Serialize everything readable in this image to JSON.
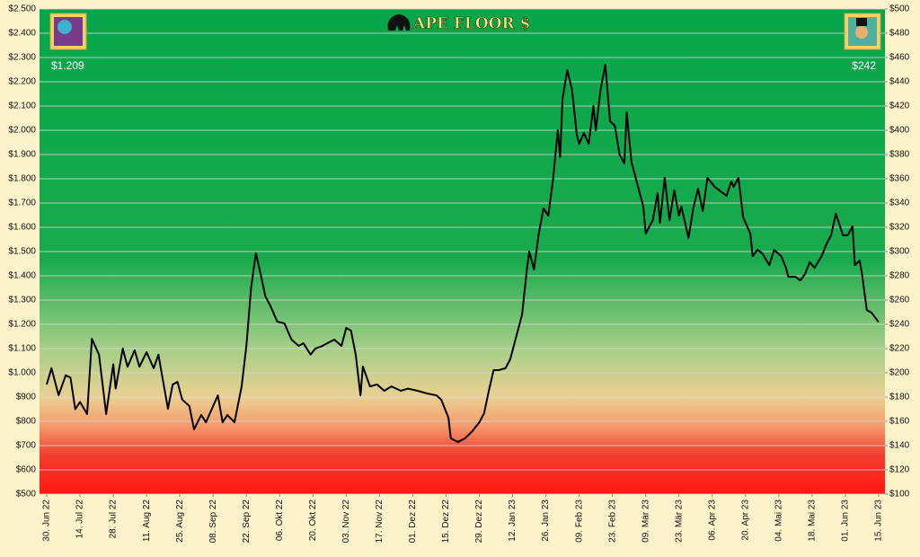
{
  "chart_data": {
    "type": "line",
    "title": "APE FLOOR $",
    "annotations": [
      "$1.209",
      "$242"
    ],
    "color": "#000000",
    "grid": true,
    "x": [
      "2022-06-30",
      "2022-07-02",
      "2022-07-05",
      "2022-07-08",
      "2022-07-10",
      "2022-07-12",
      "2022-07-14",
      "2022-07-17",
      "2022-07-19",
      "2022-07-22",
      "2022-07-25",
      "2022-07-28",
      "2022-07-29",
      "2022-08-01",
      "2022-08-03",
      "2022-08-06",
      "2022-08-08",
      "2022-08-11",
      "2022-08-14",
      "2022-08-16",
      "2022-08-18",
      "2022-08-20",
      "2022-08-22",
      "2022-08-24",
      "2022-08-26",
      "2022-08-29",
      "2022-08-31",
      "2022-09-03",
      "2022-09-05",
      "2022-09-08",
      "2022-09-10",
      "2022-09-12",
      "2022-09-14",
      "2022-09-17",
      "2022-09-20",
      "2022-09-22",
      "2022-09-24",
      "2022-09-26",
      "2022-09-28",
      "2022-09-30",
      "2022-10-02",
      "2022-10-05",
      "2022-10-08",
      "2022-10-11",
      "2022-10-14",
      "2022-10-16",
      "2022-10-19",
      "2022-10-21",
      "2022-10-24",
      "2022-10-26",
      "2022-10-29",
      "2022-11-01",
      "2022-11-03",
      "2022-11-05",
      "2022-11-07",
      "2022-11-09",
      "2022-11-10",
      "2022-11-13",
      "2022-11-16",
      "2022-11-19",
      "2022-11-22",
      "2022-11-26",
      "2022-11-29",
      "2022-12-03",
      "2022-12-07",
      "2022-12-11",
      "2022-12-13",
      "2022-12-16",
      "2022-12-17",
      "2022-12-20",
      "2022-12-23",
      "2022-12-26",
      "2022-12-29",
      "2022-12-31",
      "2023-01-02",
      "2023-01-04",
      "2023-01-06",
      "2023-01-09",
      "2023-01-11",
      "2023-01-13",
      "2023-01-16",
      "2023-01-18",
      "2023-01-19",
      "2023-01-21",
      "2023-01-23",
      "2023-01-25",
      "2023-01-27",
      "2023-01-29",
      "2023-01-31",
      "2023-02-01",
      "2023-02-02",
      "2023-02-04",
      "2023-02-06",
      "2023-02-08",
      "2023-02-09",
      "2023-02-11",
      "2023-02-13",
      "2023-02-15",
      "2023-02-16",
      "2023-02-18",
      "2023-02-20",
      "2023-02-22",
      "2023-02-24",
      "2023-02-26",
      "2023-02-28",
      "2023-03-01",
      "2023-03-03",
      "2023-03-05",
      "2023-03-06",
      "2023-03-08",
      "2023-03-09",
      "2023-03-12",
      "2023-03-14",
      "2023-03-15",
      "2023-03-17",
      "2023-03-19",
      "2023-03-21",
      "2023-03-23",
      "2023-03-24",
      "2023-03-27",
      "2023-03-29",
      "2023-03-31",
      "2023-04-02",
      "2023-04-04",
      "2023-04-07",
      "2023-04-09",
      "2023-04-12",
      "2023-04-14",
      "2023-04-15",
      "2023-04-17",
      "2023-04-19",
      "2023-04-22",
      "2023-04-23",
      "2023-04-25",
      "2023-04-27",
      "2023-04-30",
      "2023-05-02",
      "2023-05-05",
      "2023-05-07",
      "2023-05-08",
      "2023-05-11",
      "2023-05-13",
      "2023-05-15",
      "2023-05-17",
      "2023-05-19",
      "2023-05-22",
      "2023-05-24",
      "2023-05-26",
      "2023-05-28",
      "2023-05-31",
      "2023-06-02",
      "2023-06-04",
      "2023-06-05",
      "2023-06-07",
      "2023-06-08",
      "2023-06-10",
      "2023-06-12",
      "2023-06-15"
    ],
    "values": [
      952,
      1019,
      908,
      990,
      980,
      850,
      880,
      830,
      1140,
      1075,
      830,
      1035,
      935,
      1100,
      1025,
      1093,
      1025,
      1085,
      1019,
      1075,
      963,
      852,
      952,
      963,
      890,
      863,
      767,
      826,
      796,
      863,
      907,
      796,
      826,
      796,
      944,
      1111,
      1352,
      1493,
      1407,
      1315,
      1278,
      1211,
      1204,
      1137,
      1111,
      1122,
      1075,
      1100,
      1111,
      1122,
      1137,
      1111,
      1185,
      1174,
      1075,
      907,
      1026,
      944,
      952,
      926,
      944,
      926,
      935,
      926,
      915,
      907,
      889,
      815,
      730,
      715,
      730,
      759,
      796,
      833,
      926,
      1011,
      1011,
      1019,
      1056,
      1130,
      1241,
      1426,
      1500,
      1426,
      1574,
      1678,
      1648,
      1796,
      2000,
      1889,
      2130,
      2248,
      2167,
      1981,
      1944,
      1989,
      1944,
      2100,
      2000,
      2167,
      2270,
      2037,
      2019,
      1900,
      1863,
      2074,
      1870,
      1796,
      1759,
      1685,
      1574,
      1630,
      1741,
      1619,
      1804,
      1630,
      1752,
      1648,
      1685,
      1556,
      1678,
      1759,
      1667,
      1804,
      1767,
      1752,
      1730,
      1789,
      1767,
      1804,
      1641,
      1574,
      1481,
      1507,
      1493,
      1444,
      1507,
      1481,
      1433,
      1396,
      1396,
      1381,
      1407,
      1456,
      1433,
      1481,
      1530,
      1567,
      1656,
      1567,
      1567,
      1604,
      1444,
      1463,
      1407,
      1259,
      1248,
      1209
    ],
    "xlim": [
      "2022-06-30",
      "2023-06-15"
    ],
    "xticks": [
      {
        "value": "2022-06-30",
        "label": "30. Jun 22"
      },
      {
        "value": "2022-07-14",
        "label": "14. Jul 22"
      },
      {
        "value": "2022-07-28",
        "label": "28. Jul 22"
      },
      {
        "value": "2022-08-11",
        "label": "11. Aug 22"
      },
      {
        "value": "2022-08-25",
        "label": "25. Aug 22"
      },
      {
        "value": "2022-09-08",
        "label": "08. Sep 22"
      },
      {
        "value": "2022-09-22",
        "label": "22. Sep 22"
      },
      {
        "value": "2022-10-06",
        "label": "06. Okt 22"
      },
      {
        "value": "2022-10-20",
        "label": "20. Okt 22"
      },
      {
        "value": "2022-11-03",
        "label": "03. Nov 22"
      },
      {
        "value": "2022-11-17",
        "label": "17. Nov 22"
      },
      {
        "value": "2022-12-01",
        "label": "01. Dez 22"
      },
      {
        "value": "2022-12-15",
        "label": "15. Dez 22"
      },
      {
        "value": "2022-12-29",
        "label": "29. Dez 22"
      },
      {
        "value": "2023-01-12",
        "label": "12. Jan 23"
      },
      {
        "value": "2023-01-26",
        "label": "26. Jan 23"
      },
      {
        "value": "2023-02-09",
        "label": "09. Feb 23"
      },
      {
        "value": "2023-02-23",
        "label": "23. Feb 23"
      },
      {
        "value": "2023-03-09",
        "label": "09. Mär 23"
      },
      {
        "value": "2023-03-23",
        "label": "23. Mär 23"
      },
      {
        "value": "2023-04-06",
        "label": "06. Apr 23"
      },
      {
        "value": "2023-04-20",
        "label": "20. Apr 23"
      },
      {
        "value": "2023-05-04",
        "label": "04. Mai 23"
      },
      {
        "value": "2023-05-18",
        "label": "18. Mai 23"
      },
      {
        "value": "2023-06-01",
        "label": "01. Jun 23"
      },
      {
        "value": "2023-06-15",
        "label": "15. Jun 23"
      }
    ],
    "ylim": [
      500,
      2500
    ],
    "yticks": [
      {
        "value": 500,
        "label": "$500"
      },
      {
        "value": 600,
        "label": "$600"
      },
      {
        "value": 700,
        "label": "$700"
      },
      {
        "value": 800,
        "label": "$800"
      },
      {
        "value": 900,
        "label": "$900"
      },
      {
        "value": 1000,
        "label": "$1.000"
      },
      {
        "value": 1100,
        "label": "$1.100"
      },
      {
        "value": 1200,
        "label": "$1.200"
      },
      {
        "value": 1300,
        "label": "$1.300"
      },
      {
        "value": 1400,
        "label": "$1.400"
      },
      {
        "value": 1500,
        "label": "$1.500"
      },
      {
        "value": 1600,
        "label": "$1.600"
      },
      {
        "value": 1700,
        "label": "$1.700"
      },
      {
        "value": 1800,
        "label": "$1.800"
      },
      {
        "value": 1900,
        "label": "$1.900"
      },
      {
        "value": 2000,
        "label": "$2.000"
      },
      {
        "value": 2100,
        "label": "$2.100"
      },
      {
        "value": 2200,
        "label": "$2.200"
      },
      {
        "value": 2300,
        "label": "$2.300"
      },
      {
        "value": 2400,
        "label": "$2.400"
      },
      {
        "value": 2500,
        "label": "$2.500"
      }
    ],
    "y2lim": [
      100,
      500
    ],
    "y2ticks": [
      {
        "value": 100,
        "label": "$100"
      },
      {
        "value": 120,
        "label": "$120"
      },
      {
        "value": 140,
        "label": "$140"
      },
      {
        "value": 160,
        "label": "$160"
      },
      {
        "value": 180,
        "label": "$180"
      },
      {
        "value": 200,
        "label": "$200"
      },
      {
        "value": 220,
        "label": "$220"
      },
      {
        "value": 240,
        "label": "$240"
      },
      {
        "value": 260,
        "label": "$260"
      },
      {
        "value": 280,
        "label": "$280"
      },
      {
        "value": 300,
        "label": "$300"
      },
      {
        "value": 320,
        "label": "$320"
      },
      {
        "value": 340,
        "label": "$340"
      },
      {
        "value": 360,
        "label": "$360"
      },
      {
        "value": 380,
        "label": "$380"
      },
      {
        "value": 400,
        "label": "$400"
      },
      {
        "value": 420,
        "label": "$420"
      },
      {
        "value": 440,
        "label": "$440"
      },
      {
        "value": 460,
        "label": "$460"
      },
      {
        "value": 480,
        "label": "$480"
      },
      {
        "value": 500,
        "label": "$500"
      }
    ]
  }
}
